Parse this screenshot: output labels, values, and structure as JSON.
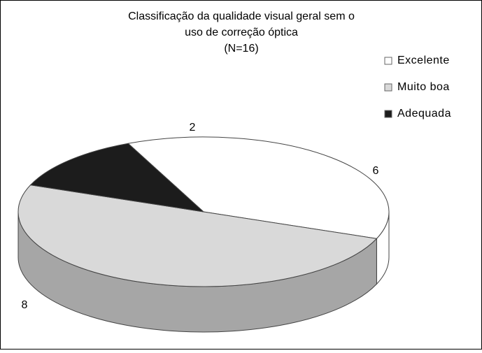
{
  "chart_data": {
    "type": "pie3d",
    "title": [
      "Classificação da qualidade visual geral sem o",
      "uso de correção óptica",
      "(N=16)"
    ],
    "categories": [
      "Excelente",
      "Muito boa",
      "Adequada"
    ],
    "values": [
      6,
      8,
      2
    ],
    "colors": [
      "#ffffff",
      "#d9d9d9",
      "#1c1c1c"
    ],
    "side_colors": [
      "#ffffff",
      "#a6a6a6",
      "#1c1c1c"
    ],
    "legend": "right"
  }
}
